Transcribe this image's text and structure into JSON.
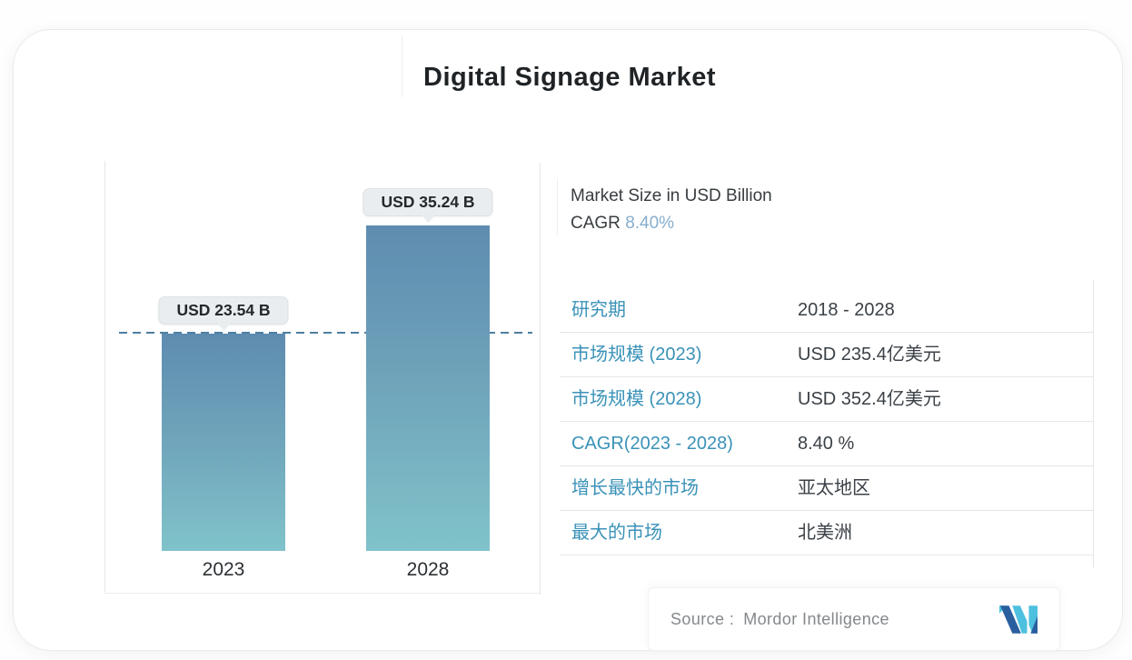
{
  "title": "Digital Signage Market",
  "chart_data": {
    "type": "bar",
    "categories": [
      "2023",
      "2028"
    ],
    "values": [
      23.54,
      35.24
    ],
    "value_labels": [
      "USD 23.54 B",
      "USD 35.24 B"
    ],
    "unit": "USD Billion",
    "title": "Digital Signage Market",
    "xlabel": "",
    "ylabel": "Market Size in USD Billion",
    "reference_line_value": 23.54,
    "gridlines": false,
    "legend": false
  },
  "summary": {
    "unit_label": "Market Size in USD Billion",
    "cagr_label": "CAGR",
    "cagr_value": "8.40%"
  },
  "table": {
    "rows": [
      {
        "label": "研究期",
        "value": "2018 - 2028"
      },
      {
        "label": "市场规模 (2023)",
        "value": "USD 235.4亿美元"
      },
      {
        "label": "市场规模 (2028)",
        "value": "USD 352.4亿美元"
      },
      {
        "label": "CAGR(2023 - 2028)",
        "value": "8.40 %"
      },
      {
        "label": "增长最快的市场",
        "value": "亚太地区"
      },
      {
        "label": "最大的市场",
        "value": "北美洲"
      }
    ]
  },
  "footer": {
    "source_label": "Source :",
    "source_value": "Mordor Intelligence",
    "logo_icon": "mordor-intelligence-logo"
  },
  "colors": {
    "accent_blue": "#3a92b8",
    "cagr_highlight": "#86aecf",
    "bar_top": "#5e8cb0",
    "bar_mid": "#6fa4ba",
    "bar_bottom": "#80c3ca",
    "dashed_line": "#4e7fa0",
    "logo_dark": "#2a5f9f",
    "logo_light": "#4ec0df"
  }
}
